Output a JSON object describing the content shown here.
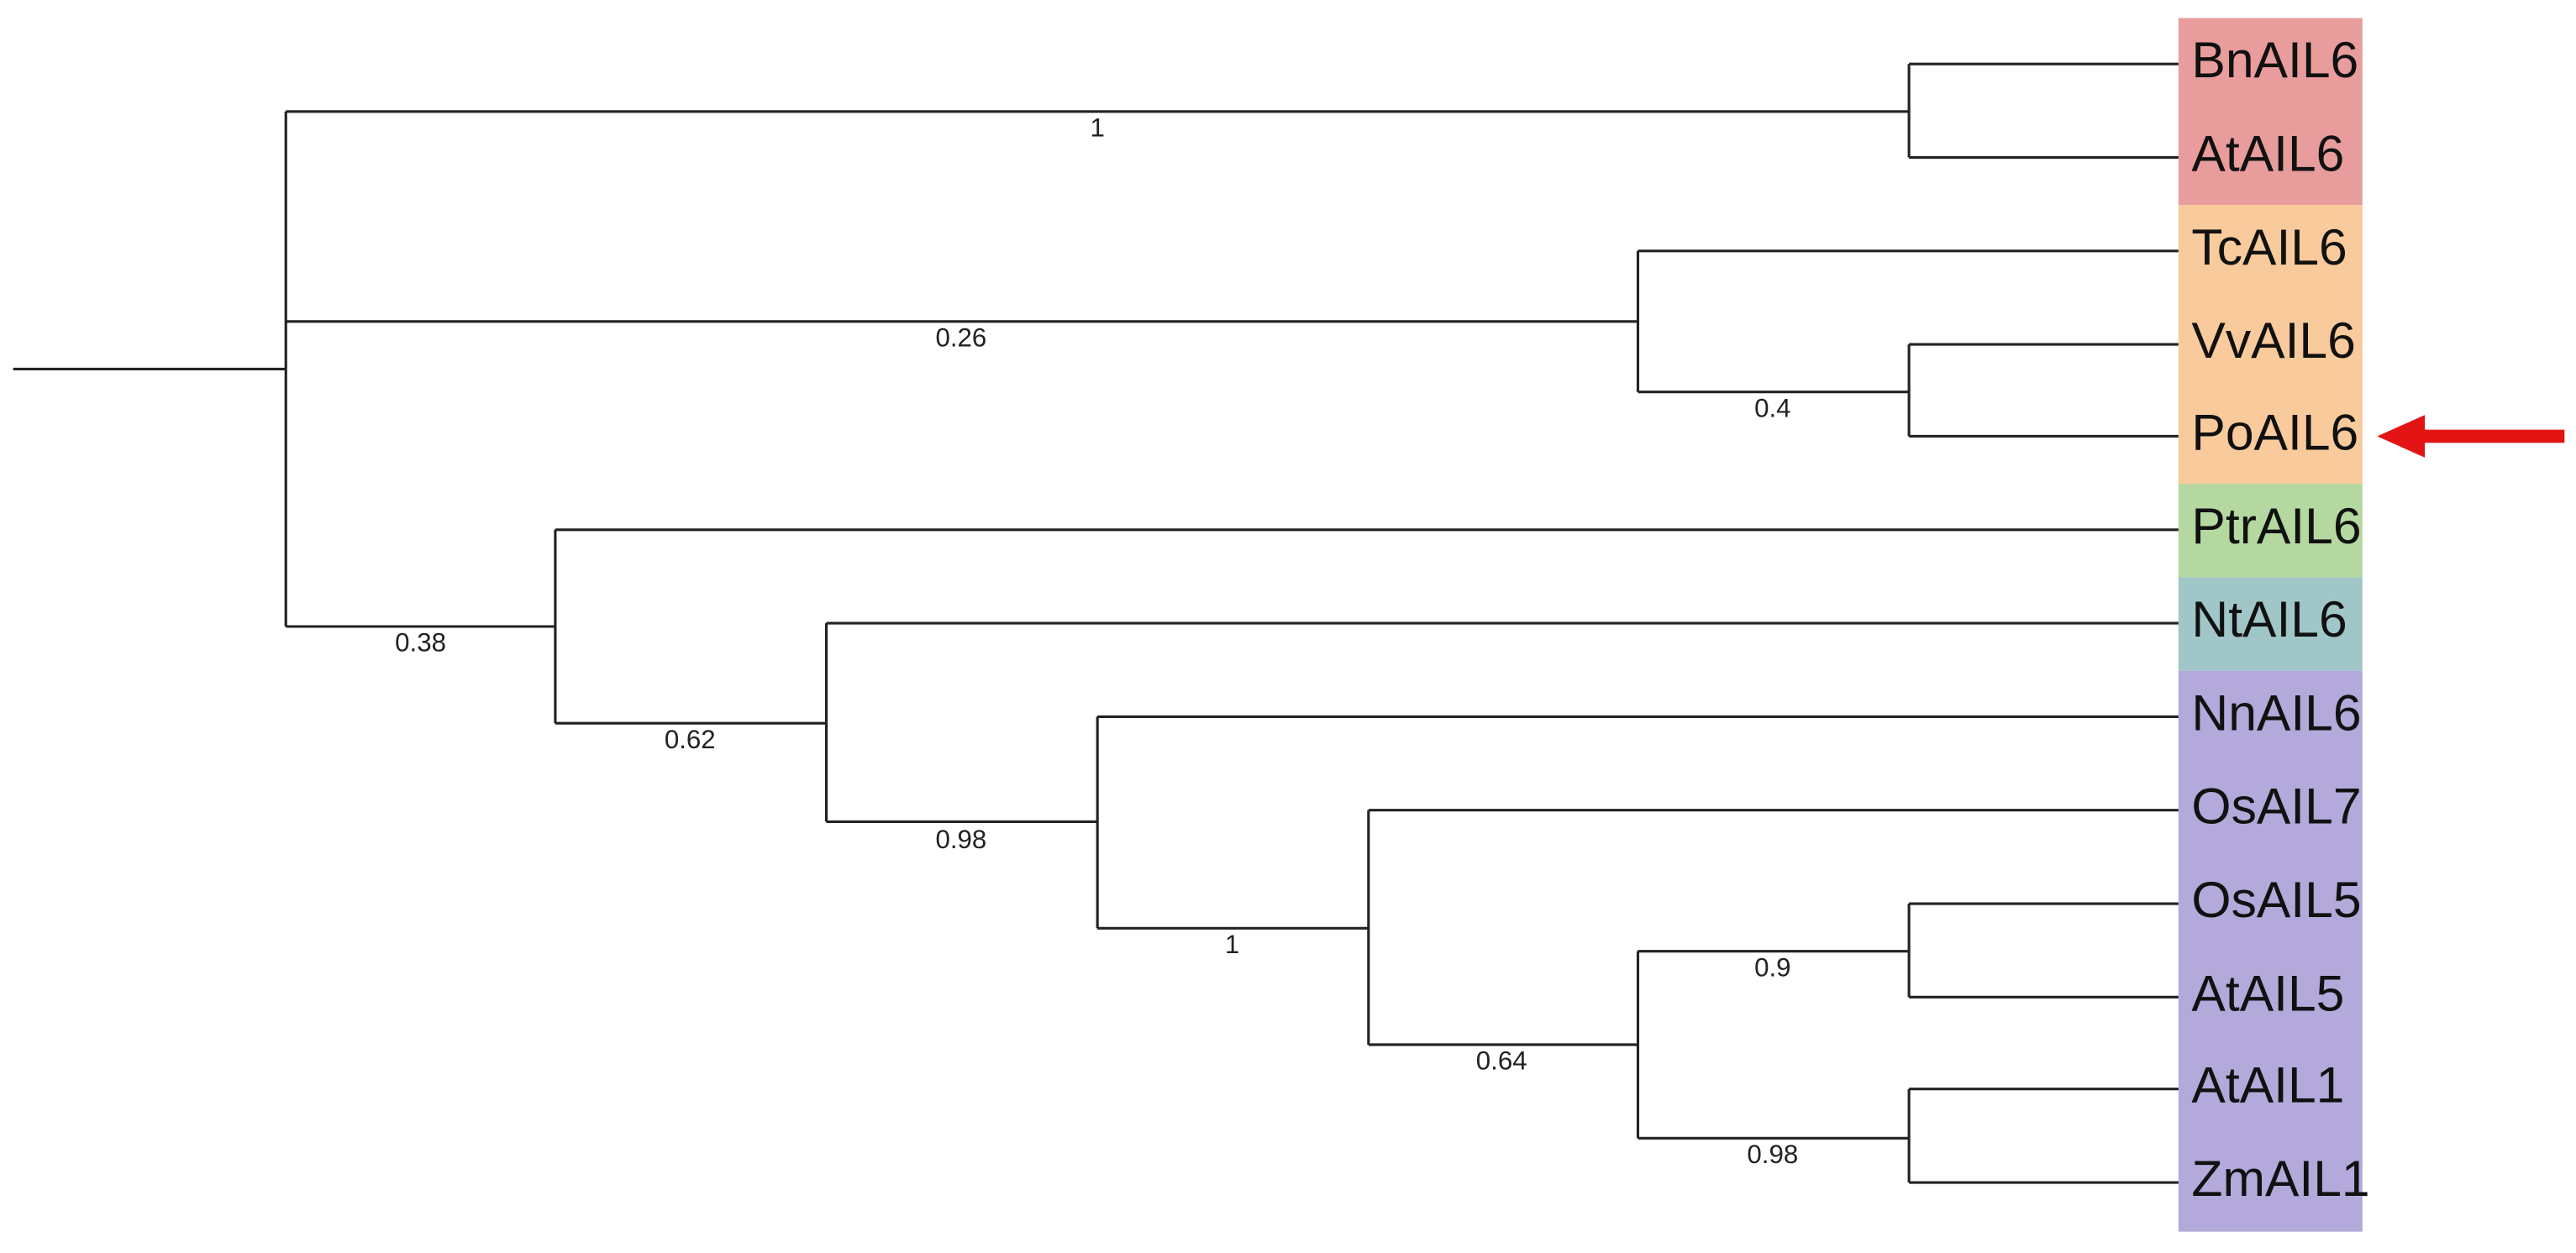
{
  "leaves": [
    "BnAIL6",
    "AtAIL6",
    "TcAIL6",
    "VvAIL6",
    "PoAIL6",
    "PtrAIL6",
    "NtAIL6",
    "NnAIL6",
    "OsAIL7",
    "OsAIL5",
    "AtAIL5",
    "AtAIL1",
    "ZmAIL1"
  ],
  "support": [
    "1",
    "0.26",
    "0.4",
    "0.38",
    "0.62",
    "0.98",
    "1",
    "0.64",
    "0.9",
    "0.98"
  ]
}
